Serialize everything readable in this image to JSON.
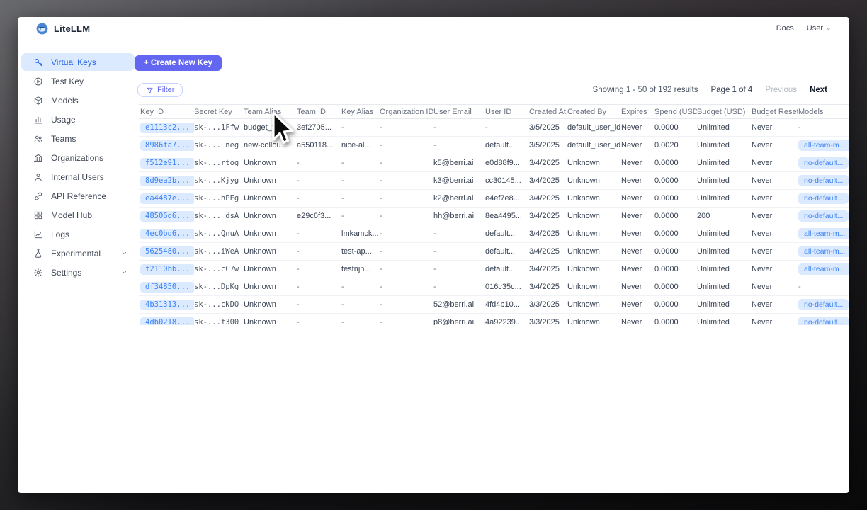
{
  "colors": {
    "accent": "#6366f1",
    "badge_bg": "#dbeafe",
    "badge_text": "#3b82f6",
    "sidebar_selected_bg": "#dbeafe",
    "sidebar_selected_text": "#2563eb"
  },
  "navbar": {
    "logo_text": "LiteLLM",
    "logo_icon": "litellm-whale-icon",
    "docs_link": "Docs",
    "user_menu": "User"
  },
  "sidebar": {
    "items": [
      {
        "label": "Virtual Keys",
        "icon": "key",
        "active": true,
        "chevron": false
      },
      {
        "label": "Test Key",
        "icon": "play-circle",
        "active": false,
        "chevron": false
      },
      {
        "label": "Models",
        "icon": "cube",
        "active": false,
        "chevron": false
      },
      {
        "label": "Usage",
        "icon": "bar-chart",
        "active": false,
        "chevron": false
      },
      {
        "label": "Teams",
        "icon": "teams",
        "active": false,
        "chevron": false
      },
      {
        "label": "Organizations",
        "icon": "bank",
        "active": false,
        "chevron": false
      },
      {
        "label": "Internal Users",
        "icon": "user",
        "active": false,
        "chevron": false
      },
      {
        "label": "API Reference",
        "icon": "link",
        "active": false,
        "chevron": false
      },
      {
        "label": "Model Hub",
        "icon": "grid",
        "active": false,
        "chevron": false
      },
      {
        "label": "Logs",
        "icon": "line-chart",
        "active": false,
        "chevron": false
      },
      {
        "label": "Experimental",
        "icon": "flask",
        "active": false,
        "chevron": true
      },
      {
        "label": "Settings",
        "icon": "gear",
        "active": false,
        "chevron": true
      }
    ]
  },
  "toolbar": {
    "create_button": "+ Create New Key",
    "filter_button": "Filter",
    "filter_icon": "funnel-icon"
  },
  "pagination": {
    "showing": "Showing 1 - 50 of 192 results",
    "page": "Page 1 of 4",
    "previous": "Previous",
    "next": "Next"
  },
  "table": {
    "columns": [
      "Key ID",
      "Secret Key",
      "Team Alias",
      "Team ID",
      "Key Alias",
      "Organization ID",
      "User Email",
      "User ID",
      "Created At",
      "Created By",
      "Expires",
      "Spend (USD)",
      "Budget (USD)",
      "Budget Reset",
      "Models"
    ],
    "rows": [
      [
        "e1113c2...",
        "sk-...1Ffw",
        "budget_tea...",
        "3ef2705...",
        "-",
        "-",
        "-",
        "-",
        "3/5/2025",
        "default_user_id",
        "Never",
        "0.0000",
        "Unlimited",
        "Never",
        "-"
      ],
      [
        "8986fa7...",
        "sk-...Lneg",
        "new-collou...",
        "a550118...",
        "nice-al...",
        "-",
        "-",
        "default...",
        "3/5/2025",
        "default_user_id",
        "Never",
        "0.0020",
        "Unlimited",
        "Never",
        "all-team-m..."
      ],
      [
        "f512e91...",
        "sk-...rtog",
        "Unknown",
        "-",
        "-",
        "-",
        "k5@berri.ai",
        "e0d88f9...",
        "3/4/2025",
        "Unknown",
        "Never",
        "0.0000",
        "Unlimited",
        "Never",
        "no-default..."
      ],
      [
        "8d9ea2b...",
        "sk-...Kjyg",
        "Unknown",
        "-",
        "-",
        "-",
        "k3@berri.ai",
        "cc30145...",
        "3/4/2025",
        "Unknown",
        "Never",
        "0.0000",
        "Unlimited",
        "Never",
        "no-default..."
      ],
      [
        "ea4487e...",
        "sk-...hPEg",
        "Unknown",
        "-",
        "-",
        "-",
        "k2@berri.ai",
        "e4ef7e8...",
        "3/4/2025",
        "Unknown",
        "Never",
        "0.0000",
        "Unlimited",
        "Never",
        "no-default..."
      ],
      [
        "48506d6...",
        "sk-..._dsA",
        "Unknown",
        "e29c6f3...",
        "-",
        "-",
        "hh@berri.ai",
        "8ea4495...",
        "3/4/2025",
        "Unknown",
        "Never",
        "0.0000",
        "200",
        "Never",
        "no-default..."
      ],
      [
        "4ec0bd6...",
        "sk-...QnuA",
        "Unknown",
        "-",
        "lmkamck...",
        "-",
        "-",
        "default...",
        "3/4/2025",
        "Unknown",
        "Never",
        "0.0000",
        "Unlimited",
        "Never",
        "all-team-m..."
      ],
      [
        "5625480...",
        "sk-...iWeA",
        "Unknown",
        "-",
        "test-ap...",
        "-",
        "-",
        "default...",
        "3/4/2025",
        "Unknown",
        "Never",
        "0.0000",
        "Unlimited",
        "Never",
        "all-team-m..."
      ],
      [
        "f2110bb...",
        "sk-...cC7w",
        "Unknown",
        "-",
        "testnjn...",
        "-",
        "-",
        "default...",
        "3/4/2025",
        "Unknown",
        "Never",
        "0.0000",
        "Unlimited",
        "Never",
        "all-team-m..."
      ],
      [
        "df34850...",
        "sk-...DpKg",
        "Unknown",
        "-",
        "-",
        "-",
        "-",
        "016c35c...",
        "3/4/2025",
        "Unknown",
        "Never",
        "0.0000",
        "Unlimited",
        "Never",
        "-"
      ],
      [
        "4b31313...",
        "sk-...cNDQ",
        "Unknown",
        "-",
        "-",
        "-",
        "52@berri.ai",
        "4fd4b10...",
        "3/3/2025",
        "Unknown",
        "Never",
        "0.0000",
        "Unlimited",
        "Never",
        "no-default..."
      ],
      [
        "4db0218...",
        "sk-...f300",
        "Unknown",
        "-",
        "-",
        "-",
        "p8@berri.ai",
        "4a92239...",
        "3/3/2025",
        "Unknown",
        "Never",
        "0.0000",
        "Unlimited",
        "Never",
        "no-default..."
      ]
    ]
  }
}
